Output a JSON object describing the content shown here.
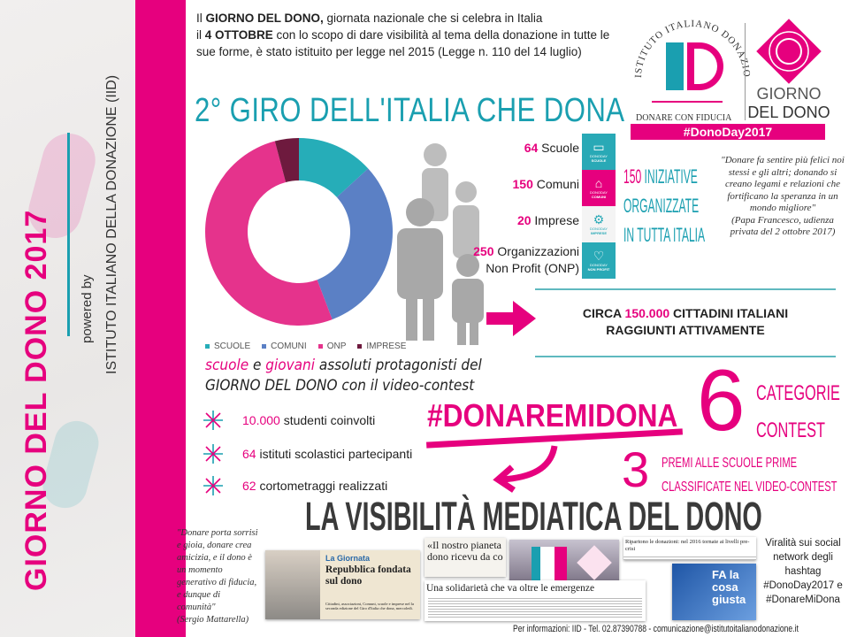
{
  "sidebar": {
    "title": "GIORNO DEL DONO 2017",
    "powered_by": "powered by",
    "institute": "ISTITUTO ITALIANO DELLA DONAZIONE (IID)"
  },
  "intro": {
    "bold1": "GIORNO DEL DONO,",
    "pre1": "Il ",
    "text1": " giornata nazionale che si celebra in Italia",
    "pre2": "il ",
    "bold2": "4 OTTOBRE",
    "text2": " con lo scopo di dare visibilità al tema della donazione in tutte le sue forme, è stato istituito per legge nel 2015 (Legge n. 110 del 14 luglio)"
  },
  "title": "2° GIRO DELL'ITALIA CHE DONA",
  "logo": {
    "arc_text": "ISTITUTO ITALIANO DONAZIONE",
    "monogram": "ID",
    "tagline": "DONARE CON FIDUCIA",
    "brand1": "GIORNO",
    "brand2": "DEL DONO",
    "hashtag": "#DonoDay2017",
    "colors": {
      "pink": "#e6007e",
      "teal": "#1a9fb0"
    }
  },
  "chart_data": {
    "type": "pie",
    "variant": "donut",
    "categories": [
      "SCUOLE",
      "COMUNI",
      "ONP",
      "IMPRESE"
    ],
    "values": [
      64,
      150,
      250,
      20
    ],
    "colors": [
      "#26adb8",
      "#5b80c5",
      "#e5338c",
      "#6e1a3e"
    ],
    "legend": "bottom"
  },
  "stats": [
    {
      "num": "64",
      "label": " Scuole",
      "tile": "SCUOLE",
      "icon": "book-icon"
    },
    {
      "num": "150",
      "label": " Comuni",
      "tile": "COMUNI",
      "icon": "building-icon"
    },
    {
      "num": "20",
      "label": " Imprese",
      "tile": "IMPRESE",
      "icon": "gears-icon"
    },
    {
      "num": "250",
      "label": " Organizzazioni",
      "label2": "Non Profit (ONP)",
      "tile": "NON PROFIT",
      "icon": "heart-icon"
    }
  ],
  "tile_prefix": "DONODAY",
  "initiatives": {
    "num": "150",
    "line1": " INIZIATIVE",
    "line2": "ORGANIZZATE",
    "line3": "IN TUTTA ITALIA"
  },
  "quote_pope": {
    "text": "\"Donare fa sentire più felici noi stessi e gli altri; donando si creano legami e relazioni che fortificano la speranza in un mondo migliore\"",
    "author": "(Papa Francesco, udienza privata del 2 ottobre 2017)"
  },
  "reach": {
    "pre": "CIRCA ",
    "num": "150.000",
    "post": " CITTADINI ITALIANI",
    "line2": "RAGGIUNTI ATTIVAMENTE"
  },
  "schools": {
    "w1": "scuole",
    "w2": " e ",
    "w3": "giovani",
    "w4": " assoluti protagonisti del",
    "line2a": "GIORNO DEL DONO",
    "line2b": " con il video-contest"
  },
  "bullets": [
    {
      "num": "10.000",
      "text": " studenti coinvolti"
    },
    {
      "num": "64",
      "text": " istituti scolastici partecipanti"
    },
    {
      "num": "62",
      "text": " cortometraggi realizzati"
    }
  ],
  "contest": {
    "hashtag": "#DONAREMIDONA",
    "categories_num": "6",
    "categories_l1": "CATEGORIE",
    "categories_l2": "CONTEST",
    "prizes_num": "3",
    "prizes_l1": "PREMI ALLE SCUOLE PRIME",
    "prizes_l2": "CLASSIFICATE NEL VIDEO-CONTEST"
  },
  "media": {
    "title": "LA VISIBILITÀ MEDIATICA DEL DONO",
    "quote": "\"Donare porta sorrisi e gioia, donare crea amicizia, e il dono è un momento generativo di fiducia, e dunque di comunità\"",
    "quote_author": "(Sergio Mattarella)",
    "press": {
      "p1_kicker": "La Giornata",
      "p1_head": "Repubblica fondata sul dono",
      "p1_body": "Cittadini, associazioni, Comuni, scuole e imprese nel la seconda edizione del Giro d'Italia che dona, mercoledì.",
      "p2_head": "«Il nostro pianeta dono ricevu da co",
      "p3_head": "Ripartono le donazioni: nel 2016 tornate ai livelli pre-crisi",
      "p4_head": "Una solidarietà che va oltre le emergenze",
      "p5_head": "FA la cosa giusta"
    },
    "viral": "Viralità sui social network degli hashtag #DonoDay2017 e #DonareMiDona"
  },
  "footer": "Per informazioni: IID - Tel. 02.87390788 - comunicazione@istitutoitalianodonazione.it"
}
